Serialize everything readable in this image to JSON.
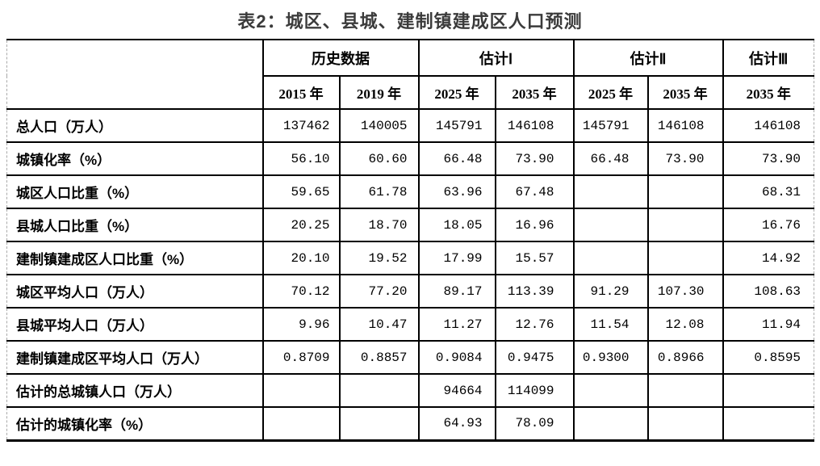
{
  "title": "表2：城区、县城、建制镇建成区人口预测",
  "table": {
    "header_groups": [
      {
        "label": "",
        "colspan": 1
      },
      {
        "label": "历史数据",
        "colspan": 2
      },
      {
        "label": "估计Ⅰ",
        "colspan": 2
      },
      {
        "label": "估计Ⅱ",
        "colspan": 2
      },
      {
        "label": "估计Ⅲ",
        "colspan": 1
      }
    ],
    "year_headers": [
      "2015 年",
      "2019 年",
      "2025 年",
      "2035 年",
      "2025 年",
      "2035 年",
      "2035 年"
    ],
    "rows": [
      {
        "label": "总人口（万人）",
        "values": [
          "137462",
          "140005",
          "145791",
          "146108",
          "145791",
          "146108",
          "146108"
        ]
      },
      {
        "label": "城镇化率（%）",
        "values": [
          "56.10",
          "60.60",
          "66.48",
          "73.90",
          "66.48",
          "73.90",
          "73.90"
        ]
      },
      {
        "label": "城区人口比重（%）",
        "values": [
          "59.65",
          "61.78",
          "63.96",
          "67.48",
          "",
          "",
          "68.31"
        ]
      },
      {
        "label": "县城人口比重（%）",
        "values": [
          "20.25",
          "18.70",
          "18.05",
          "16.96",
          "",
          "",
          "16.76"
        ]
      },
      {
        "label": "建制镇建成区人口比重（%）",
        "values": [
          "20.10",
          "19.52",
          "17.99",
          "15.57",
          "",
          "",
          "14.92"
        ]
      },
      {
        "label": "城区平均人口（万人）",
        "values": [
          "70.12",
          "77.20",
          "89.17",
          "113.39",
          "91.29",
          "107.30",
          "108.63"
        ]
      },
      {
        "label": "县城平均人口（万人）",
        "values": [
          "9.96",
          "10.47",
          "11.27",
          "12.76",
          "11.54",
          "12.08",
          "11.94"
        ]
      },
      {
        "label": "建制镇建成区平均人口（万人）",
        "values": [
          "0.8709",
          "0.8857",
          "0.9084",
          "0.9475",
          "0.9300",
          "0.8966",
          "0.8595"
        ]
      },
      {
        "label": "估计的总城镇人口（万人）",
        "values": [
          "",
          "",
          "94664",
          "114099",
          "",
          "",
          ""
        ]
      },
      {
        "label": "估计的城镇化率（%）",
        "values": [
          "",
          "",
          "64.93",
          "78.09",
          "",
          "",
          ""
        ]
      }
    ],
    "colors": {
      "title_text": "#3b3b3b",
      "table_text": "#000000",
      "grid_line": "#000000",
      "outer_dashed_border": "#a9a9a9",
      "background": "#ffffff"
    }
  }
}
